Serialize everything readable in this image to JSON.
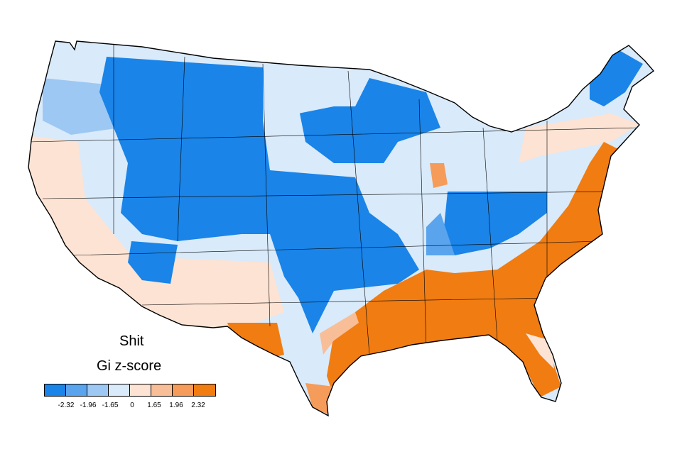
{
  "map": {
    "word": "Shit",
    "legend_title": "Gi z-score",
    "legend": {
      "colors": [
        "#1a84e8",
        "#5aa4ee",
        "#9dc8f3",
        "#d9eafa",
        "#fde3d3",
        "#f8be98",
        "#f59c5a",
        "#f07c12"
      ],
      "tick_labels": [
        "-2.32",
        "-1.96",
        "-1.65",
        "0",
        "1.65",
        "1.96",
        "2.32"
      ]
    }
  }
}
